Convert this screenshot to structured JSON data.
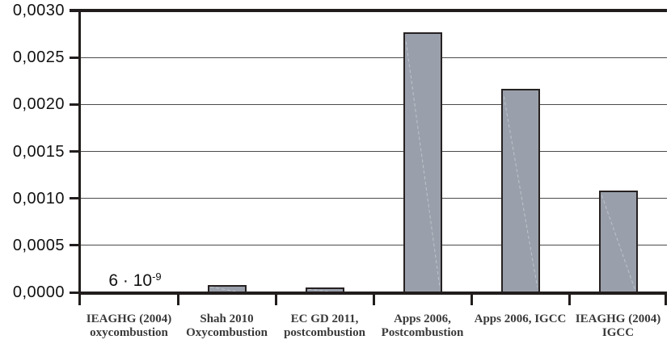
{
  "chart_data": {
    "type": "bar",
    "title": "",
    "xlabel": "",
    "ylabel": "",
    "categories": [
      {
        "lines": [
          "IEAGHG (2004)",
          "oxycombustion"
        ]
      },
      {
        "lines": [
          "Shah 2010",
          "Oxycombustion"
        ]
      },
      {
        "lines": [
          "EC GD 2011,",
          "postcombustion"
        ]
      },
      {
        "lines": [
          "Apps 2006,",
          "Postcombustion"
        ]
      },
      {
        "lines": [
          "Apps 2006, IGCC"
        ]
      },
      {
        "lines": [
          "IEAGHG (2004)",
          "IGCC"
        ]
      }
    ],
    "values": [
      6e-09,
      8e-05,
      5e-05,
      0.00277,
      0.00217,
      0.00108
    ],
    "ylim": [
      0,
      0.003
    ],
    "y_tick_values": [
      0.003,
      0.0025,
      0.002,
      0.0015,
      0.001,
      0.0005,
      0
    ],
    "y_tick_labels": [
      "0,0030",
      "0,0025",
      "0,0020",
      "0,0015",
      "0,0010",
      "0,0005",
      "0,0000"
    ],
    "decimal_separator": ",",
    "grid": "horizontal",
    "legend_position": "none",
    "annotation": {
      "text": "6·10⁻⁹",
      "text_base": "6 · 10",
      "text_exponent": "-9",
      "category_index": 0
    },
    "colors": {
      "bar_fill": "#9aa0ab",
      "bar_border": "#272121",
      "axis": "#221d1d",
      "gridline": "#4a4a4a",
      "y_label_color": "#111111",
      "category_label_color": "#3a3a3a",
      "background": "#ffffff"
    }
  }
}
